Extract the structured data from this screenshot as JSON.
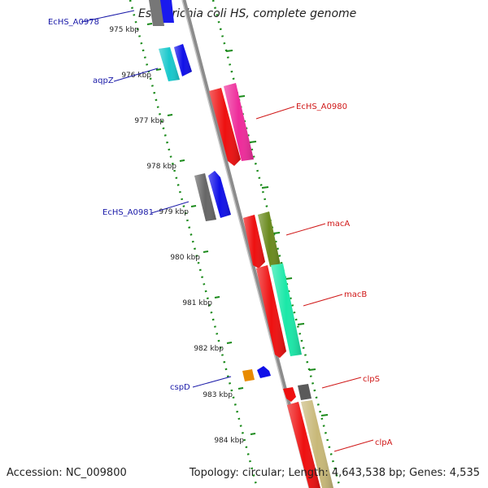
{
  "title": "Escherichia coli HS, complete genome",
  "footer": {
    "accession": "Accession: NC_009800",
    "summary": "Topology: circular; Length: 4,643,538 bp; Genes: 4,535"
  },
  "colors": {
    "backbone": "#8c8c8c",
    "track_dots": "#1a8a1a",
    "label_forward": "#1a1aa8",
    "label_reverse": "#d01818",
    "tick_text": "#222222"
  },
  "tick_labels": [
    "975 kbp",
    "976 kbp",
    "977 kbp",
    "978 kbp",
    "979 kbp",
    "980 kbp",
    "981 kbp",
    "982 kbp",
    "983 kbp",
    "984 kbp"
  ],
  "gene_labels": {
    "forward": [
      "EcHS_A0978",
      "aqpZ",
      "EcHS_A0981",
      "cspD"
    ],
    "reverse": [
      "EcHS_A0980",
      "macA",
      "macB",
      "clpS",
      "clpA"
    ]
  }
}
